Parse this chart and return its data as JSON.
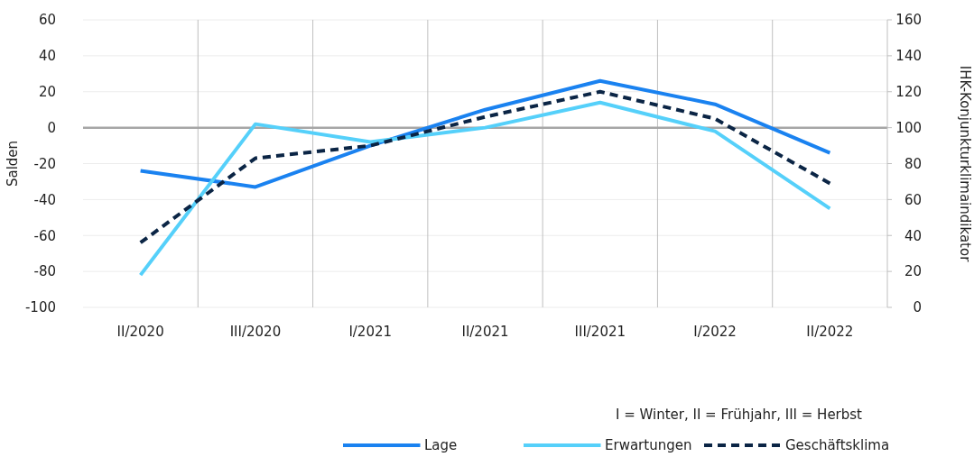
{
  "chart_data": {
    "type": "line",
    "categories": [
      "II/2020",
      "III/2020",
      "I/2021",
      "II/2021",
      "III/2021",
      "I/2022",
      "II/2022"
    ],
    "ylabel": "Salden",
    "y2label": "IHK-Konjunkturklimaindikator",
    "ylim": [
      -100,
      60
    ],
    "yticks": [
      -100,
      -80,
      -60,
      -40,
      -20,
      0,
      20,
      40,
      60
    ],
    "y2lim": [
      0,
      160
    ],
    "y2ticks": [
      0,
      20,
      40,
      60,
      80,
      100,
      120,
      140,
      160
    ],
    "ref_lines": [
      {
        "axis": "y",
        "value": 0,
        "color": "#a6a6a6"
      }
    ],
    "series": [
      {
        "name": "Lage",
        "color": "#1a82f0",
        "values": [
          -24,
          -33,
          -10,
          10,
          26,
          13,
          -14
        ]
      },
      {
        "name": "Erwartungen",
        "color": "#55d0fa",
        "values": [
          -82,
          2,
          -8,
          0,
          14,
          -2,
          -45
        ]
      },
      {
        "name": "Geschäftsklima",
        "color": "#0b2545",
        "values": [
          36,
          83,
          90,
          106,
          120,
          105,
          69
        ],
        "axis": "y2",
        "line_style": "dashed"
      }
    ],
    "grid": true,
    "legend": "bottom",
    "marker": "none",
    "annotations": [
      "I = Winter, II = Frühjahr, III = Herbst"
    ]
  }
}
